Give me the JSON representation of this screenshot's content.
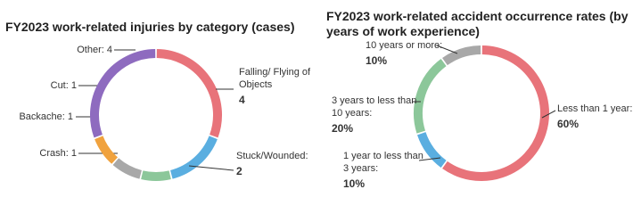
{
  "chart_data": [
    {
      "type": "donut",
      "title": "FY2023 work-related injuries by category (cases)",
      "categories": [
        "Falling/ Flying of Objects",
        "Stuck/Wounded:",
        "Crash:",
        "Backache:",
        "Cut:",
        "Other:"
      ],
      "values": [
        4,
        2,
        1,
        1,
        1,
        4
      ],
      "colors": [
        "#e8737a",
        "#5aaee0",
        "#8cc79a",
        "#a8a8a8",
        "#f0a23e",
        "#8e6bbf"
      ]
    },
    {
      "type": "donut",
      "title": "FY2023 work-related accident occurrence rates (by years of work experience)",
      "categories": [
        "Less than 1 year:",
        "1 year to less than 3 years:",
        "3 years to less than 10 years:",
        "10 years or more:"
      ],
      "values": [
        60,
        10,
        20,
        10
      ],
      "value_labels": [
        "60%",
        "10%",
        "20%",
        "10%"
      ],
      "colors": [
        "#e8737a",
        "#5aaee0",
        "#8cc79a",
        "#a8a8a8"
      ]
    }
  ]
}
